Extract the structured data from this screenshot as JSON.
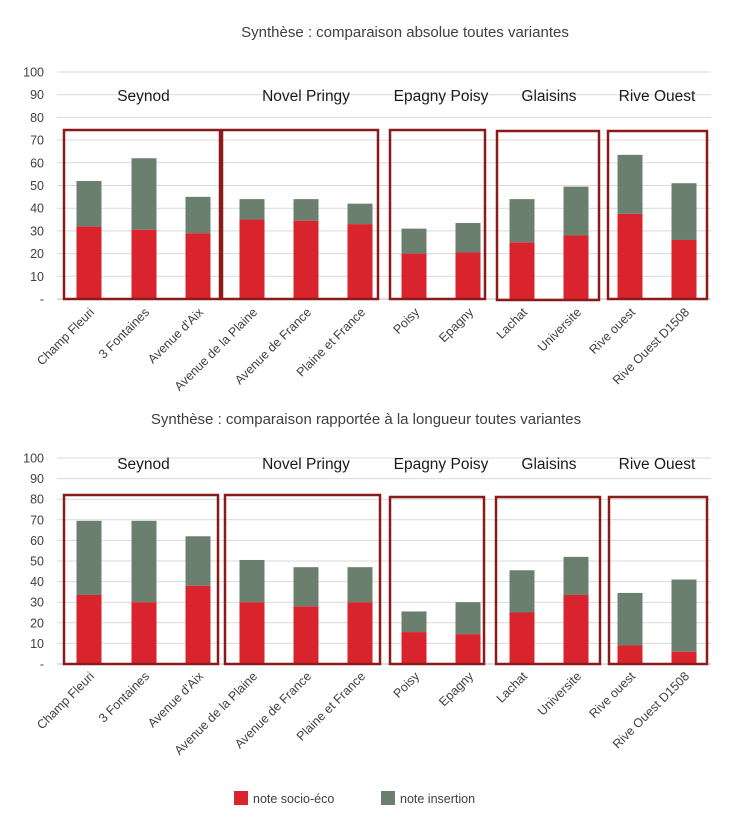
{
  "chart_data": [
    {
      "type": "bar",
      "stacked": true,
      "title": "Synthèse : comparaison absolue toutes variantes",
      "ylim": [
        0,
        100
      ],
      "yticks": [
        "-",
        "10",
        "20",
        "30",
        "40",
        "50",
        "60",
        "70",
        "80",
        "90",
        "100"
      ],
      "grid": true,
      "categories": [
        "Champ Fleuri",
        "3 Fontaines",
        "Avenue d'Aix",
        "Avenue de la Plaine",
        "Avenue de France",
        "Plaine et France",
        "Poisy",
        "Epagny",
        "Lachat",
        "Universite",
        "Rive ouest",
        "Rive Ouest D1508"
      ],
      "series": [
        {
          "name": "note socio-éco",
          "color": "#d9232d",
          "values": [
            32,
            30.5,
            29,
            35,
            34.5,
            33,
            20,
            20.5,
            25,
            28,
            37.5,
            26
          ]
        },
        {
          "name": "note insertion",
          "color": "#6a7f6e",
          "values": [
            20,
            31.5,
            16,
            9,
            9.5,
            9,
            11,
            13,
            19,
            21.5,
            26,
            25
          ]
        }
      ],
      "groups": [
        {
          "label": "Seynod",
          "members": [
            0,
            2
          ]
        },
        {
          "label": "Novel Pringy",
          "members": [
            3,
            5
          ]
        },
        {
          "label": "Epagny Poisy",
          "members": [
            6,
            7
          ]
        },
        {
          "label": "Glaisins",
          "members": [
            8,
            9
          ]
        },
        {
          "label": "Rive Ouest",
          "members": [
            10,
            11
          ]
        }
      ]
    },
    {
      "type": "bar",
      "stacked": true,
      "title": "Synthèse : comparaison rapportée à la longueur toutes variantes",
      "ylim": [
        0,
        100
      ],
      "yticks": [
        "-",
        "10",
        "20",
        "30",
        "40",
        "50",
        "60",
        "70",
        "80",
        "90",
        "100"
      ],
      "grid": true,
      "categories": [
        "Champ Fleuri",
        "3 Fontaines",
        "Avenue d'Aix",
        "Avenue de la Plaine",
        "Avenue de France",
        "Plaine et France",
        "Poisy",
        "Epagny",
        "Lachat",
        "Universite",
        "Rive ouest",
        "Rive Ouest D1508"
      ],
      "series": [
        {
          "name": "note socio-éco",
          "color": "#d9232d",
          "values": [
            33.5,
            30,
            38,
            30,
            28,
            30,
            15.5,
            14.5,
            25,
            33.5,
            9,
            6
          ]
        },
        {
          "name": "note insertion",
          "color": "#6a7f6e",
          "values": [
            36,
            39.5,
            24,
            20.5,
            19,
            17,
            10,
            15.5,
            20.5,
            18.5,
            25.5,
            35
          ]
        }
      ],
      "groups": [
        {
          "label": "Seynod",
          "members": [
            0,
            2
          ]
        },
        {
          "label": "Novel Pringy",
          "members": [
            3,
            5
          ]
        },
        {
          "label": "Epagny Poisy",
          "members": [
            6,
            7
          ]
        },
        {
          "label": "Glaisins",
          "members": [
            8,
            9
          ]
        },
        {
          "label": "Rive Ouest",
          "members": [
            10,
            11
          ]
        }
      ]
    }
  ],
  "legend": [
    {
      "label": "note socio-éco",
      "color": "#d9232d"
    },
    {
      "label": "note insertion",
      "color": "#6a7f6e"
    }
  ],
  "colors": {
    "frame": "#8b1a1a",
    "grid": "#d9d9d9",
    "axis": "#bfbfbf"
  }
}
